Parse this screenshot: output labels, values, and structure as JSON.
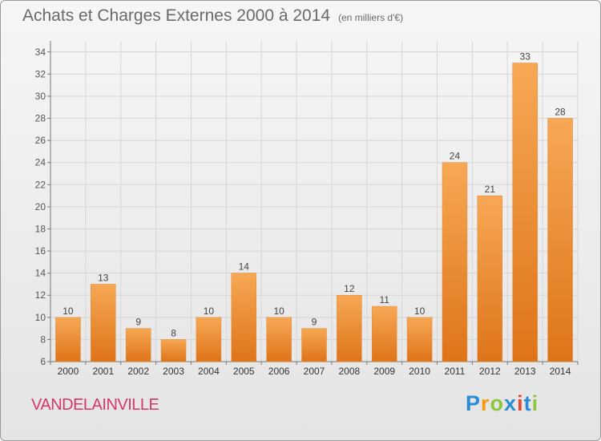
{
  "chart_data": {
    "type": "bar",
    "title": "Achats et Charges Externes 2000 à 2014",
    "subtitle": "(en milliers d'€)",
    "categories": [
      "2000",
      "2001",
      "2002",
      "2003",
      "2004",
      "2005",
      "2006",
      "2007",
      "2008",
      "2009",
      "2010",
      "2011",
      "2012",
      "2013",
      "2014"
    ],
    "values": [
      10,
      13,
      9,
      8,
      10,
      14,
      10,
      9,
      12,
      11,
      10,
      24,
      21,
      33,
      28
    ],
    "ylim": [
      6,
      35
    ],
    "yticks": [
      6,
      8,
      10,
      12,
      14,
      16,
      18,
      20,
      22,
      24,
      26,
      28,
      30,
      32,
      34
    ],
    "grid": true,
    "bar_color": "#f0902e"
  },
  "commune": "VANDELAINVILLE",
  "logo": {
    "text": "Proxiti",
    "letters": [
      "P",
      "r",
      "o",
      "x",
      "i",
      "t",
      "i"
    ],
    "colors": [
      "#2a8dd4",
      "#f39c12",
      "#8cc63f",
      "#2a8dd4",
      "#e8452c",
      "#2a8dd4",
      "#8cc63f"
    ]
  }
}
